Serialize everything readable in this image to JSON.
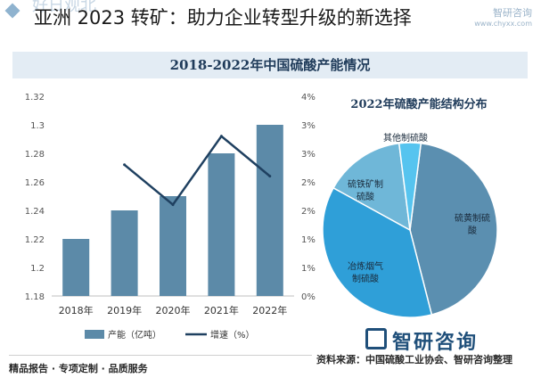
{
  "header": {
    "headline": "亚洲 2023 转矿：助力企业转型升级的新选择",
    "faint_text": "好日观北",
    "watermark_name": "智研咨询",
    "watermark_url": "www.chyxx.com"
  },
  "colors": {
    "bar": "#5c8aa8",
    "line": "#1f4060",
    "pie": [
      "#5b8fb0",
      "#2f9fd8",
      "#6fb7d8",
      "#56c4ef"
    ],
    "title_band": "#e3ecf4"
  },
  "chart_data": [
    {
      "type": "bar",
      "title": "2018-2022年中国硫酸产能情况",
      "categories": [
        "2018年",
        "2019年",
        "2020年",
        "2021年",
        "2022年"
      ],
      "series": [
        {
          "name": "产能（亿吨）",
          "type": "bar",
          "axis": "left",
          "values": [
            1.22,
            1.24,
            1.25,
            1.28,
            1.3
          ]
        },
        {
          "name": "增速（%）",
          "type": "line",
          "axis": "right",
          "values": [
            null,
            2.3,
            1.6,
            2.8,
            2.1
          ]
        }
      ],
      "y_left": {
        "min": 1.18,
        "max": 1.32,
        "ticks": [
          "1.18",
          "1.2",
          "1.22",
          "1.24",
          "1.26",
          "1.28",
          "1.3",
          "1.32"
        ]
      },
      "y_right": {
        "min": 0,
        "max": 3.5,
        "ticks": [
          "0%",
          "1%",
          "1%",
          "2%",
          "2%",
          "3%",
          "3%",
          "4%"
        ]
      },
      "grid": false,
      "legend": "bottom"
    },
    {
      "type": "pie",
      "title": "2022年硫酸产能结构分布",
      "slices": [
        {
          "label": "硫黄制硫酸",
          "value": 44
        },
        {
          "label": "冶炼烟气制硫酸",
          "value": 37
        },
        {
          "label": "硫铁矿制硫酸",
          "value": 15
        },
        {
          "label": "其他制硫酸",
          "value": 4
        }
      ]
    }
  ],
  "footer": {
    "left_text": "精品报告 · 专项定制 · 品质服务",
    "source": "资料来源：中国硫酸工业协会、智研咨询整理",
    "brand": "智研咨询"
  }
}
